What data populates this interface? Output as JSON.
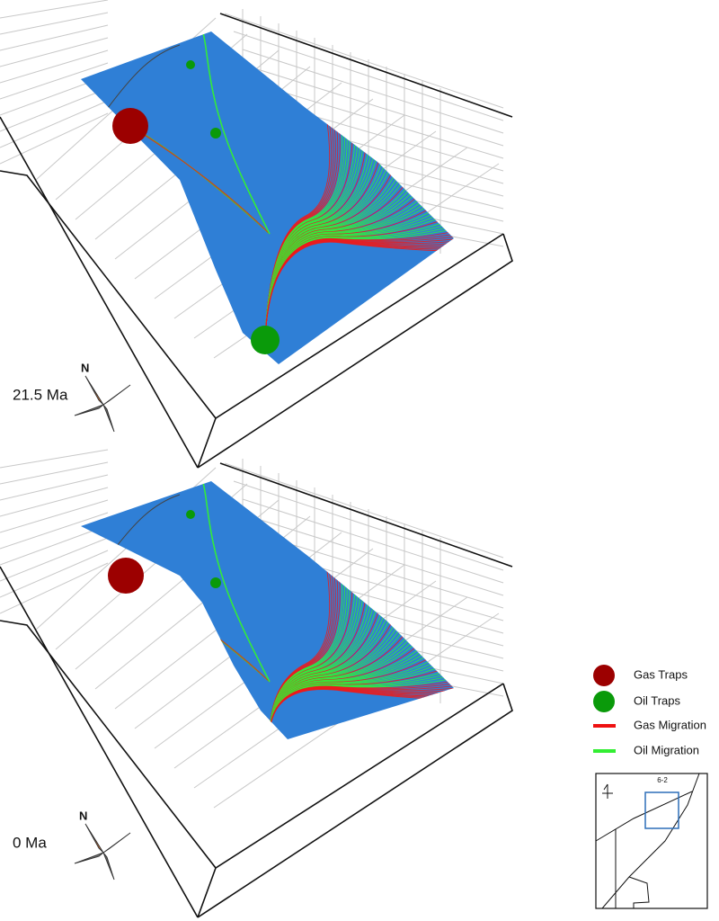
{
  "panels": [
    {
      "age": "21.5 Ma",
      "north": "N"
    },
    {
      "age": "0 Ma",
      "north": "N"
    }
  ],
  "legend": [
    "Gas Traps",
    "Oil Traps",
    "Gas Migration",
    "Oil Migration"
  ],
  "inset": {
    "label": "6-2"
  }
}
